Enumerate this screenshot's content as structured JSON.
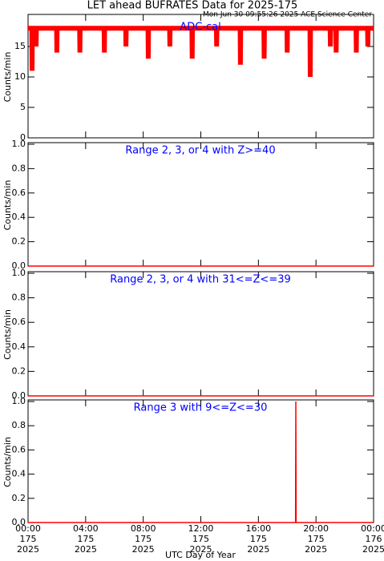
{
  "chart_data": [
    {
      "type": "line",
      "title": "LET ahead BUFRATES Data for 2025-175",
      "subtitle": "Mon Jun 30 09:55:26 2025 ACE Science Center",
      "annotation": "ADC-cal",
      "y_label": "Counts/min",
      "x": [
        0,
        0.26,
        0.28,
        0.3,
        0.54,
        0.56,
        0.58,
        1.98,
        2.0,
        2.02,
        3.58,
        3.6,
        3.62,
        5.28,
        5.3,
        5.32,
        6.78,
        6.8,
        6.82,
        8.33,
        8.35,
        8.37,
        9.83,
        9.85,
        9.87,
        11.38,
        11.4,
        11.42,
        13.08,
        13.1,
        13.12,
        14.73,
        14.75,
        14.77,
        16.38,
        16.4,
        16.42,
        17.98,
        18.0,
        18.02,
        19.58,
        19.6,
        19.62,
        20.98,
        21.0,
        21.02,
        21.38,
        21.4,
        21.42,
        22.78,
        22.8,
        22.82,
        23.58,
        23.6,
        23.62,
        24
      ],
      "series": [
        {
          "color": "#ff0000",
          "values": [
            18,
            18,
            11,
            18,
            18,
            15,
            18,
            18,
            14,
            18,
            18,
            14,
            18,
            18,
            14,
            18,
            18,
            15,
            18,
            18,
            13,
            18,
            18,
            15,
            18,
            18,
            13,
            18,
            18,
            15,
            18,
            18,
            12,
            18,
            18,
            13,
            18,
            18,
            14,
            18,
            18,
            10,
            18,
            18,
            15,
            18,
            18,
            14,
            18,
            18,
            14,
            18,
            18,
            15,
            18,
            18
          ]
        }
      ],
      "xlim": [
        0,
        24
      ],
      "xticks": [
        0,
        4,
        8,
        12,
        16,
        20,
        24
      ],
      "ylim": [
        0,
        20
      ],
      "yticks": [
        0,
        5,
        10,
        15
      ]
    },
    {
      "type": "line",
      "annotation": "Range 2, 3, or 4 with Z>=40",
      "y_label": "Counts/min",
      "x": [
        0,
        24
      ],
      "series": [
        {
          "color": "#ff0000",
          "values": [
            0,
            0
          ]
        }
      ],
      "xlim": [
        0,
        24
      ],
      "xticks": [
        0,
        4,
        8,
        12,
        16,
        20,
        24
      ],
      "ylim": [
        0,
        1
      ],
      "yticks": [
        {
          "value": 0,
          "label": "0.0"
        },
        0.2,
        0.4,
        0.6,
        0.8,
        {
          "value": 1,
          "label": "1.0"
        }
      ]
    },
    {
      "type": "line",
      "annotation": "Range 2, 3, or 4 with 31<=Z<=39",
      "y_label": "Counts/min",
      "x": [
        0,
        24
      ],
      "series": [
        {
          "color": "#ff0000",
          "values": [
            0,
            0
          ]
        }
      ],
      "xlim": [
        0,
        24
      ],
      "xticks": [
        0,
        4,
        8,
        12,
        16,
        20,
        24
      ],
      "ylim": [
        0,
        1
      ],
      "yticks": [
        {
          "value": 0,
          "label": "0.0"
        },
        0.2,
        0.4,
        0.6,
        0.8,
        {
          "value": 1,
          "label": "1.0"
        }
      ]
    },
    {
      "type": "line",
      "annotation": "Range 3 with 9<=Z<=30",
      "y_label": "Counts/min",
      "x_label": "UTC Day of Year",
      "x": [
        0,
        18.58,
        18.6,
        18.62,
        24
      ],
      "series": [
        {
          "color": "#ff0000",
          "values": [
            0,
            0,
            1,
            0,
            0
          ]
        }
      ],
      "xlim": [
        0,
        24
      ],
      "xticks": [
        {
          "value": 0,
          "label": "00:00"
        },
        {
          "value": 4,
          "label": "04:00"
        },
        {
          "value": 8,
          "label": "08:00"
        },
        {
          "value": 12,
          "label": "12:00"
        },
        {
          "value": 16,
          "label": "16:00"
        },
        {
          "value": 20,
          "label": "20:00"
        },
        {
          "value": 24,
          "label": "00:00"
        }
      ],
      "xtick_days": [
        "175",
        "175",
        "175",
        "175",
        "175",
        "175",
        "176"
      ],
      "xtick_years": [
        "2025",
        "2025",
        "2025",
        "2025",
        "2025",
        "2025",
        "2025"
      ],
      "ylim": [
        0,
        1
      ],
      "yticks": [
        {
          "value": 0,
          "label": "0.0"
        },
        0.2,
        0.4,
        0.6,
        0.8,
        {
          "value": 1,
          "label": "1.0"
        }
      ]
    }
  ]
}
